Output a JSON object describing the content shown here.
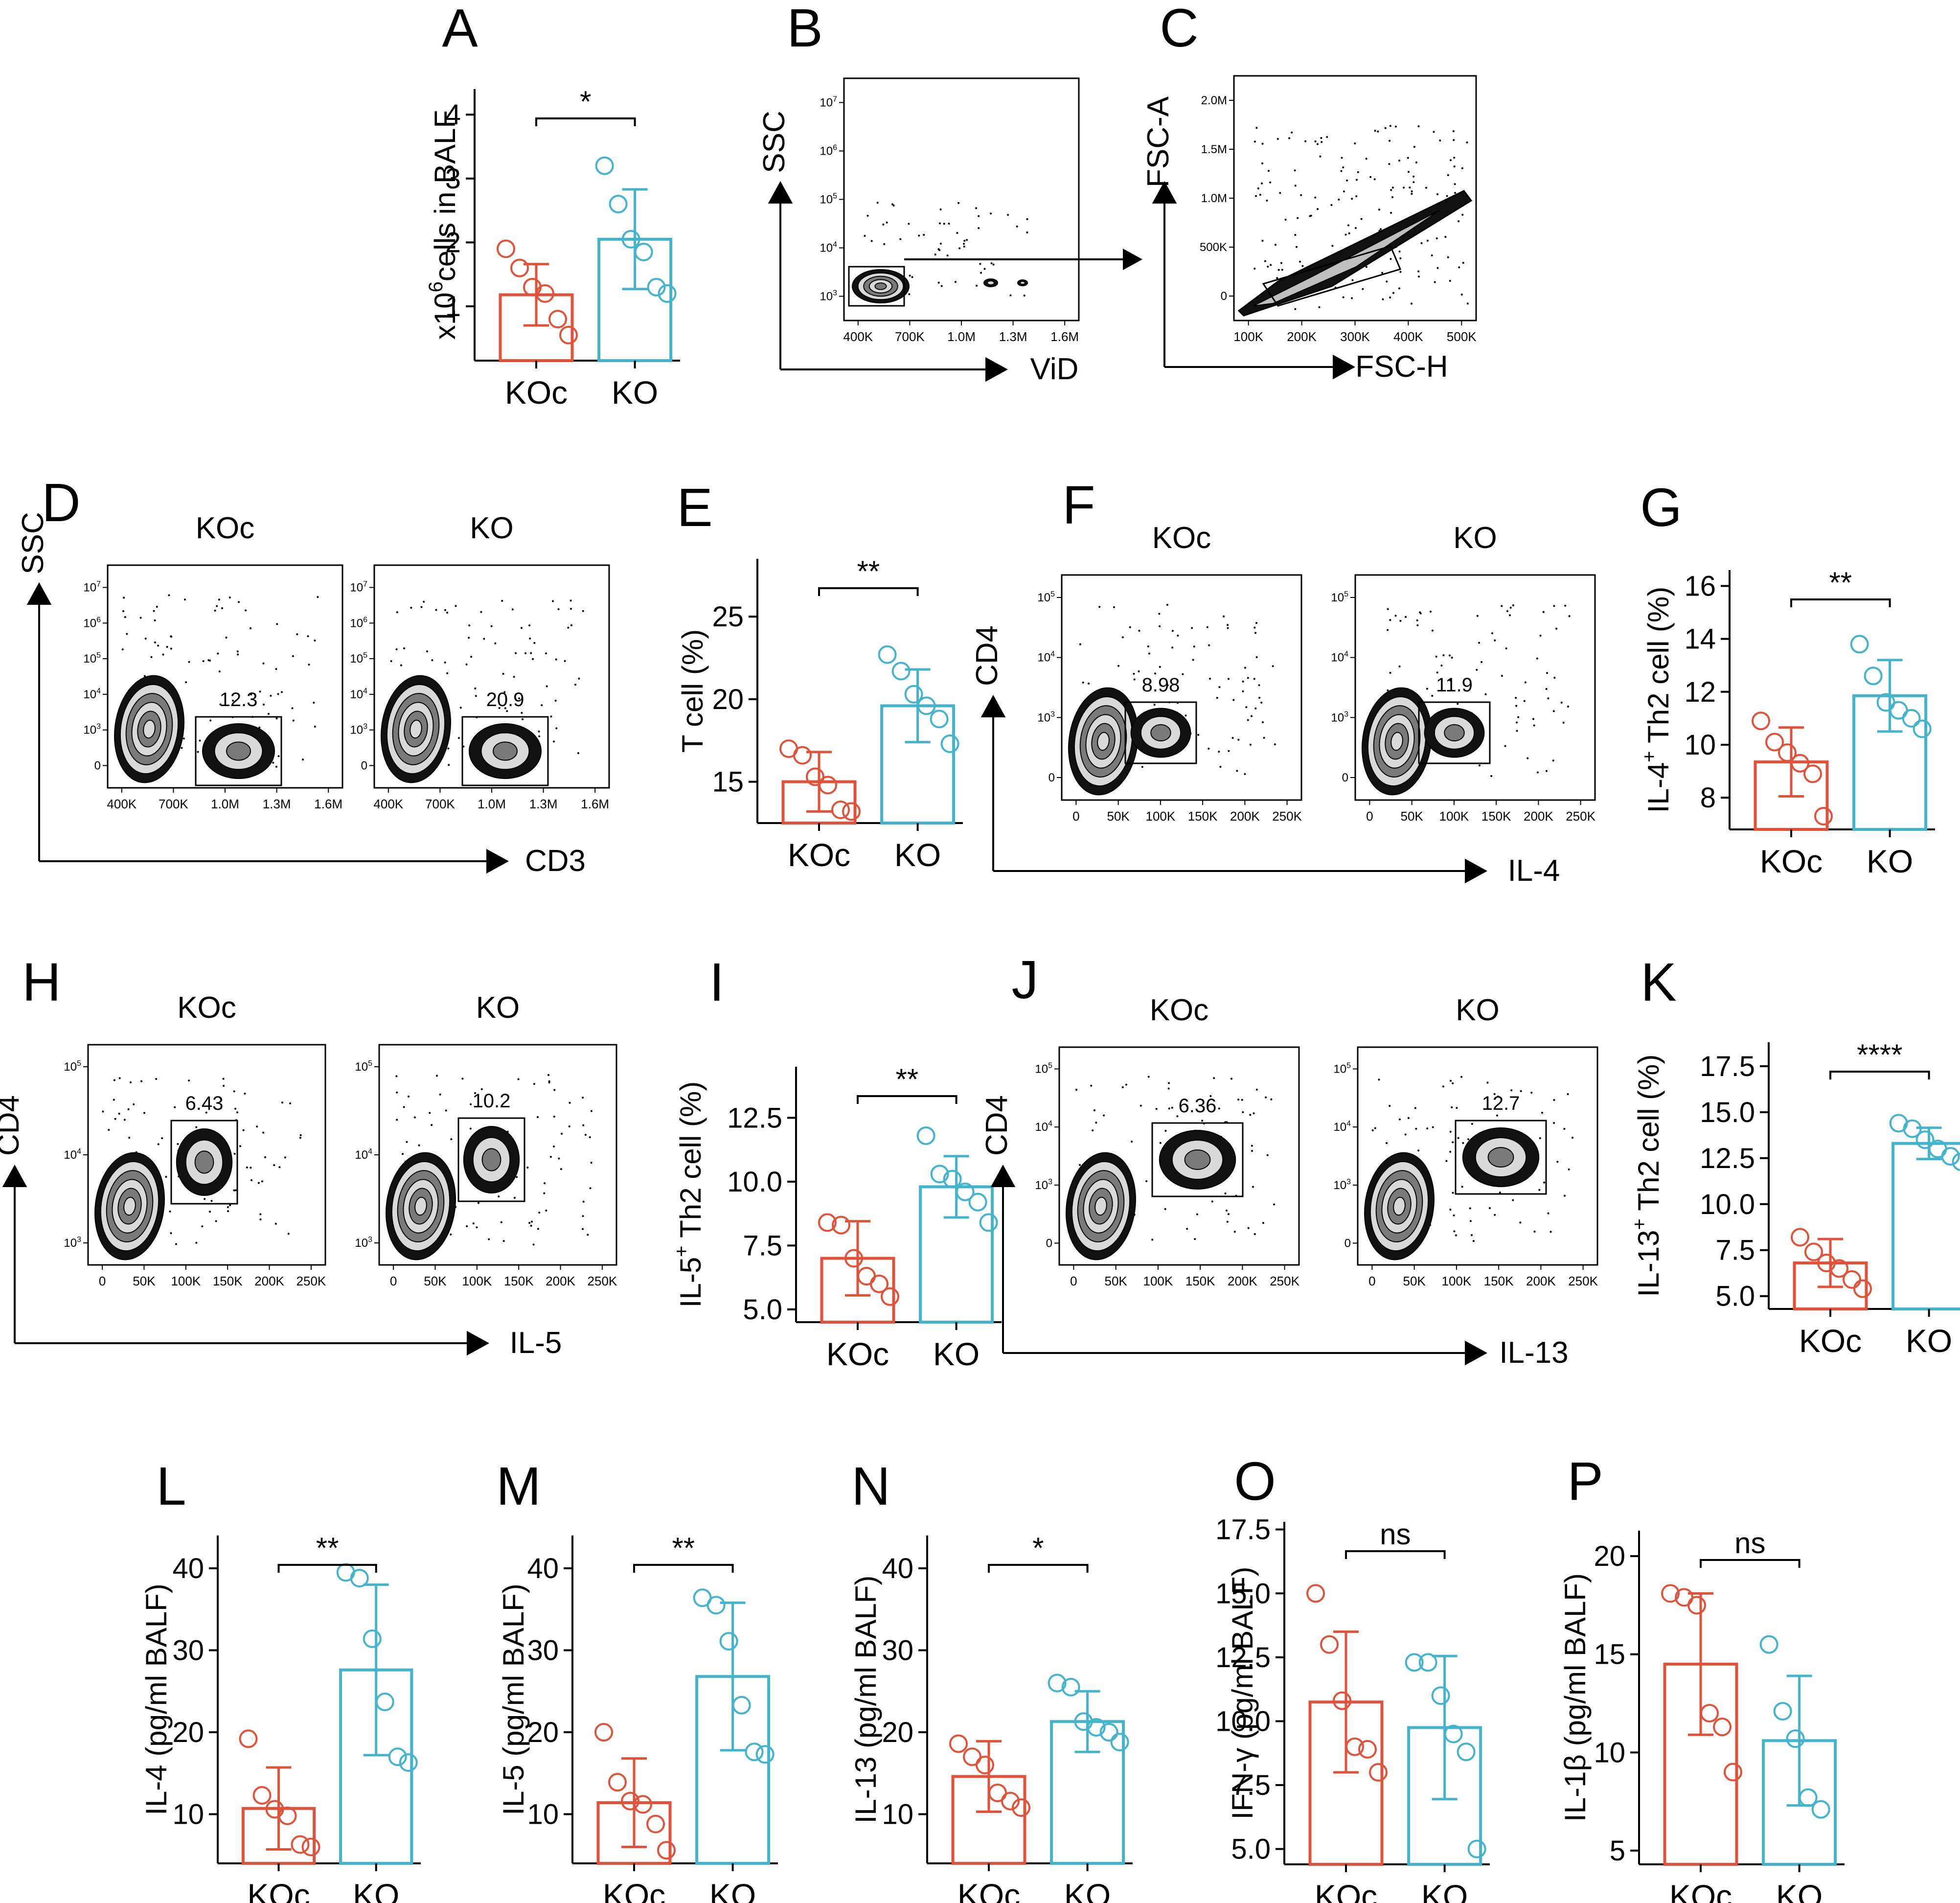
{
  "figure": {
    "colors": {
      "koc": "#e0533a",
      "ko": "#43b3ce",
      "axis": "#000000",
      "gate": "#000000"
    }
  },
  "chart_data": [
    {
      "panel": "A",
      "type": "bar",
      "ylabel": "x10^6 cells in BALF",
      "ylabel_main": "x10",
      "ylabel_sup": "6",
      "ylabel_rest": "cells in BALF",
      "ylim": [
        0.15,
        4.4
      ],
      "yticks": [
        1,
        2,
        3,
        4
      ],
      "yticklabels": [
        "1",
        "2",
        "3",
        "4"
      ],
      "categories": [
        "KOc",
        "KO"
      ],
      "means": [
        1.18,
        2.05
      ],
      "sd": [
        0.48,
        0.78
      ],
      "points": [
        [
          1.9,
          1.6,
          1.3,
          1.2,
          0.8,
          0.55
        ],
        [
          3.2,
          2.6,
          2.05,
          1.85,
          1.3,
          1.2
        ]
      ],
      "significance": "*"
    },
    {
      "panel": "B",
      "type": "flow",
      "ylabel": "SSC",
      "xlabel": "ViD",
      "xticks": [
        "400K",
        "700K",
        "1.0M",
        "1.3M",
        "1.6M"
      ],
      "yticks": [
        "10^3",
        "10^4",
        "10^5",
        "10^6",
        "10^7"
      ]
    },
    {
      "panel": "C",
      "type": "flow",
      "ylabel": "FSC-A",
      "xlabel": "FSC-H",
      "xticks": [
        "100K",
        "200K",
        "300K",
        "400K",
        "500K"
      ],
      "yticks": [
        "0",
        "500K",
        "1.0M",
        "1.5M",
        "2.0M"
      ]
    },
    {
      "panel": "D",
      "type": "flow",
      "ylabel": "SSC",
      "xlabel": "CD3",
      "samples": [
        "KOc",
        "KO"
      ],
      "gate_values": [
        "12.3",
        "20.9"
      ],
      "xticks": [
        "400K",
        "700K",
        "1.0M",
        "1.3M",
        "1.6M"
      ],
      "yticks": [
        "0",
        "10^3",
        "10^4",
        "10^5",
        "10^6",
        "10^7"
      ]
    },
    {
      "panel": "E",
      "type": "bar",
      "ylabel": "T cell (%)",
      "ylim": [
        12.5,
        28.5
      ],
      "yticks": [
        15,
        20,
        25
      ],
      "yticklabels": [
        "15",
        "20",
        "25"
      ],
      "categories": [
        "KOc",
        "KO"
      ],
      "means": [
        15.0,
        19.6
      ],
      "sd": [
        1.8,
        2.2
      ],
      "points": [
        [
          17.0,
          16.6,
          15.3,
          14.8,
          13.3,
          13.2
        ],
        [
          22.7,
          21.7,
          20.3,
          19.6,
          18.8,
          17.3
        ]
      ],
      "significance": "**"
    },
    {
      "panel": "F",
      "type": "flow",
      "ylabel": "CD4",
      "xlabel": "IL-4",
      "samples": [
        "KOc",
        "KO"
      ],
      "gate_values": [
        "8.98",
        "11.9"
      ],
      "xticks": [
        "0",
        "50K",
        "100K",
        "150K",
        "200K",
        "250K"
      ],
      "yticks": [
        "0",
        "10^3",
        "10^4",
        "10^5"
      ]
    },
    {
      "panel": "G",
      "type": "bar",
      "ylabel": "IL-4+ Th2 cell (%)",
      "ylabel_main": "IL-4",
      "ylabel_sup": "+",
      "ylabel_rest": " Th2 cell (%)",
      "ylim": [
        6.8,
        16.6
      ],
      "yticks": [
        8,
        10,
        12,
        14,
        16
      ],
      "yticklabels": [
        "8",
        "10",
        "12",
        "14",
        "16"
      ],
      "categories": [
        "KOc",
        "KO"
      ],
      "means": [
        9.35,
        11.85
      ],
      "sd": [
        1.3,
        1.35
      ],
      "points": [
        [
          10.9,
          10.1,
          9.7,
          9.3,
          8.9,
          7.3
        ],
        [
          13.8,
          12.6,
          11.6,
          11.3,
          11.0,
          10.6
        ]
      ],
      "significance": "**"
    },
    {
      "panel": "H",
      "type": "flow",
      "ylabel": "CD4",
      "xlabel": "IL-5",
      "samples": [
        "KOc",
        "KO"
      ],
      "gate_values": [
        "6.43",
        "10.2"
      ],
      "xticks": [
        "0",
        "50K",
        "100K",
        "150K",
        "200K",
        "250K"
      ],
      "yticks": [
        "10^3",
        "10^4",
        "10^5"
      ]
    },
    {
      "panel": "I",
      "type": "bar",
      "ylabel": "IL-5+ Th2 cell (%)",
      "ylabel_main": "IL-5",
      "ylabel_sup": "+",
      "ylabel_rest": " Th2 cell (%)",
      "ylim": [
        4.5,
        14.5
      ],
      "yticks": [
        5.0,
        7.5,
        10.0,
        12.5
      ],
      "yticklabels": [
        "5.0",
        "7.5",
        "10.0",
        "12.5"
      ],
      "categories": [
        "KOc",
        "KO"
      ],
      "means": [
        7.0,
        9.8
      ],
      "sd": [
        1.45,
        1.2
      ],
      "points": [
        [
          8.4,
          8.3,
          7.0,
          6.3,
          6.0,
          5.5
        ],
        [
          11.8,
          10.3,
          10.1,
          9.6,
          9.2,
          8.4
        ]
      ],
      "significance": "**"
    },
    {
      "panel": "J",
      "type": "flow",
      "ylabel": "CD4",
      "xlabel": "IL-13",
      "samples": [
        "KOc",
        "KO"
      ],
      "gate_values": [
        "6.36",
        "12.7"
      ],
      "xticks": [
        "0",
        "50K",
        "100K",
        "150K",
        "200K",
        "250K"
      ],
      "yticks": [
        "0",
        "10^3",
        "10^4",
        "10^5"
      ]
    },
    {
      "panel": "K",
      "type": "bar",
      "ylabel": "IL-13+ Th2 cell (%)",
      "ylabel_main": "IL-13",
      "ylabel_sup": "+",
      "ylabel_rest": " Th2 cell (%)",
      "ylim": [
        4.3,
        18.8
      ],
      "yticks": [
        5.0,
        7.5,
        10.0,
        12.5,
        15.0,
        17.5
      ],
      "yticklabels": [
        "5.0",
        "7.5",
        "10.0",
        "12.5",
        "15.0",
        "17.5"
      ],
      "categories": [
        "KOc",
        "KO"
      ],
      "means": [
        6.8,
        13.3
      ],
      "sd": [
        1.3,
        0.85
      ],
      "points": [
        [
          8.2,
          7.4,
          6.8,
          6.5,
          5.9,
          5.4
        ],
        [
          14.4,
          14.1,
          13.5,
          13.0,
          12.6,
          12.3
        ]
      ],
      "significance": "****"
    },
    {
      "panel": "L",
      "type": "bar",
      "ylabel": "IL-4 (pg/ml BALF)",
      "ylim": [
        4,
        44
      ],
      "yticks": [
        10,
        20,
        30,
        40
      ],
      "yticklabels": [
        "10",
        "20",
        "30",
        "40"
      ],
      "categories": [
        "KOc",
        "KO"
      ],
      "means": [
        10.7,
        27.6
      ],
      "sd": [
        5.0,
        10.4
      ],
      "points": [
        [
          19.2,
          12.3,
          10.6,
          9.8,
          6.3,
          6.0
        ],
        [
          39.5,
          38.8,
          31.4,
          23.7,
          17.0,
          16.3
        ]
      ],
      "significance": "**"
    },
    {
      "panel": "M",
      "type": "bar",
      "ylabel": "IL-5 (pg/ml BALF)",
      "ylim": [
        4,
        44
      ],
      "yticks": [
        10,
        20,
        30,
        40
      ],
      "yticklabels": [
        "10",
        "20",
        "30",
        "40"
      ],
      "categories": [
        "KOc",
        "KO"
      ],
      "means": [
        11.4,
        26.8
      ],
      "sd": [
        5.4,
        9.0
      ],
      "points": [
        [
          20.0,
          13.9,
          11.6,
          11.2,
          8.8,
          5.6
        ],
        [
          36.4,
          35.5,
          31.1,
          23.3,
          17.6,
          17.3
        ]
      ],
      "significance": "**"
    },
    {
      "panel": "N",
      "type": "bar",
      "ylabel": "IL-13 (pg/ml BALF)",
      "ylim": [
        4,
        44
      ],
      "yticks": [
        10,
        20,
        30,
        40
      ],
      "yticklabels": [
        "10",
        "20",
        "30",
        "40"
      ],
      "categories": [
        "KOc",
        "KO"
      ],
      "means": [
        14.6,
        21.3
      ],
      "sd": [
        4.3,
        3.7
      ],
      "points": [
        [
          18.6,
          17.0,
          16.0,
          12.6,
          11.6,
          10.8
        ],
        [
          26.0,
          25.5,
          21.3,
          20.6,
          20.0,
          18.8
        ]
      ],
      "significance": "*"
    },
    {
      "panel": "O",
      "type": "bar",
      "ylabel": "IFN-γ (pg/ml BALF)",
      "ylim": [
        4.4,
        17.8
      ],
      "yticks": [
        5.0,
        7.5,
        10.0,
        12.5,
        15.0,
        17.5
      ],
      "yticklabels": [
        "5.0",
        "7.5",
        "10.0",
        "12.5",
        "15.0",
        "17.5"
      ],
      "categories": [
        "KOc",
        "KO"
      ],
      "means": [
        10.75,
        9.75
      ],
      "sd": [
        2.75,
        2.8
      ],
      "points": [
        [
          15.0,
          13.0,
          10.8,
          9.0,
          8.9,
          8.0
        ],
        [
          12.3,
          12.3,
          11.0,
          9.5,
          8.8,
          5.0
        ]
      ],
      "significance": "ns"
    },
    {
      "panel": "P",
      "type": "bar",
      "ylabel": "IL-1β (pg/ml BALF)",
      "ylim": [
        4.3,
        21.3
      ],
      "yticks": [
        5,
        10,
        15,
        20
      ],
      "yticklabels": [
        "5",
        "10",
        "15",
        "20"
      ],
      "categories": [
        "KOc",
        "KO"
      ],
      "means": [
        14.5,
        10.6
      ],
      "sd": [
        3.6,
        3.3
      ],
      "points": [
        [
          18.1,
          17.9,
          17.5,
          12.0,
          11.3,
          9.0
        ],
        [
          15.5,
          12.1,
          10.7,
          7.7,
          7.1
        ]
      ],
      "significance": "ns"
    }
  ]
}
